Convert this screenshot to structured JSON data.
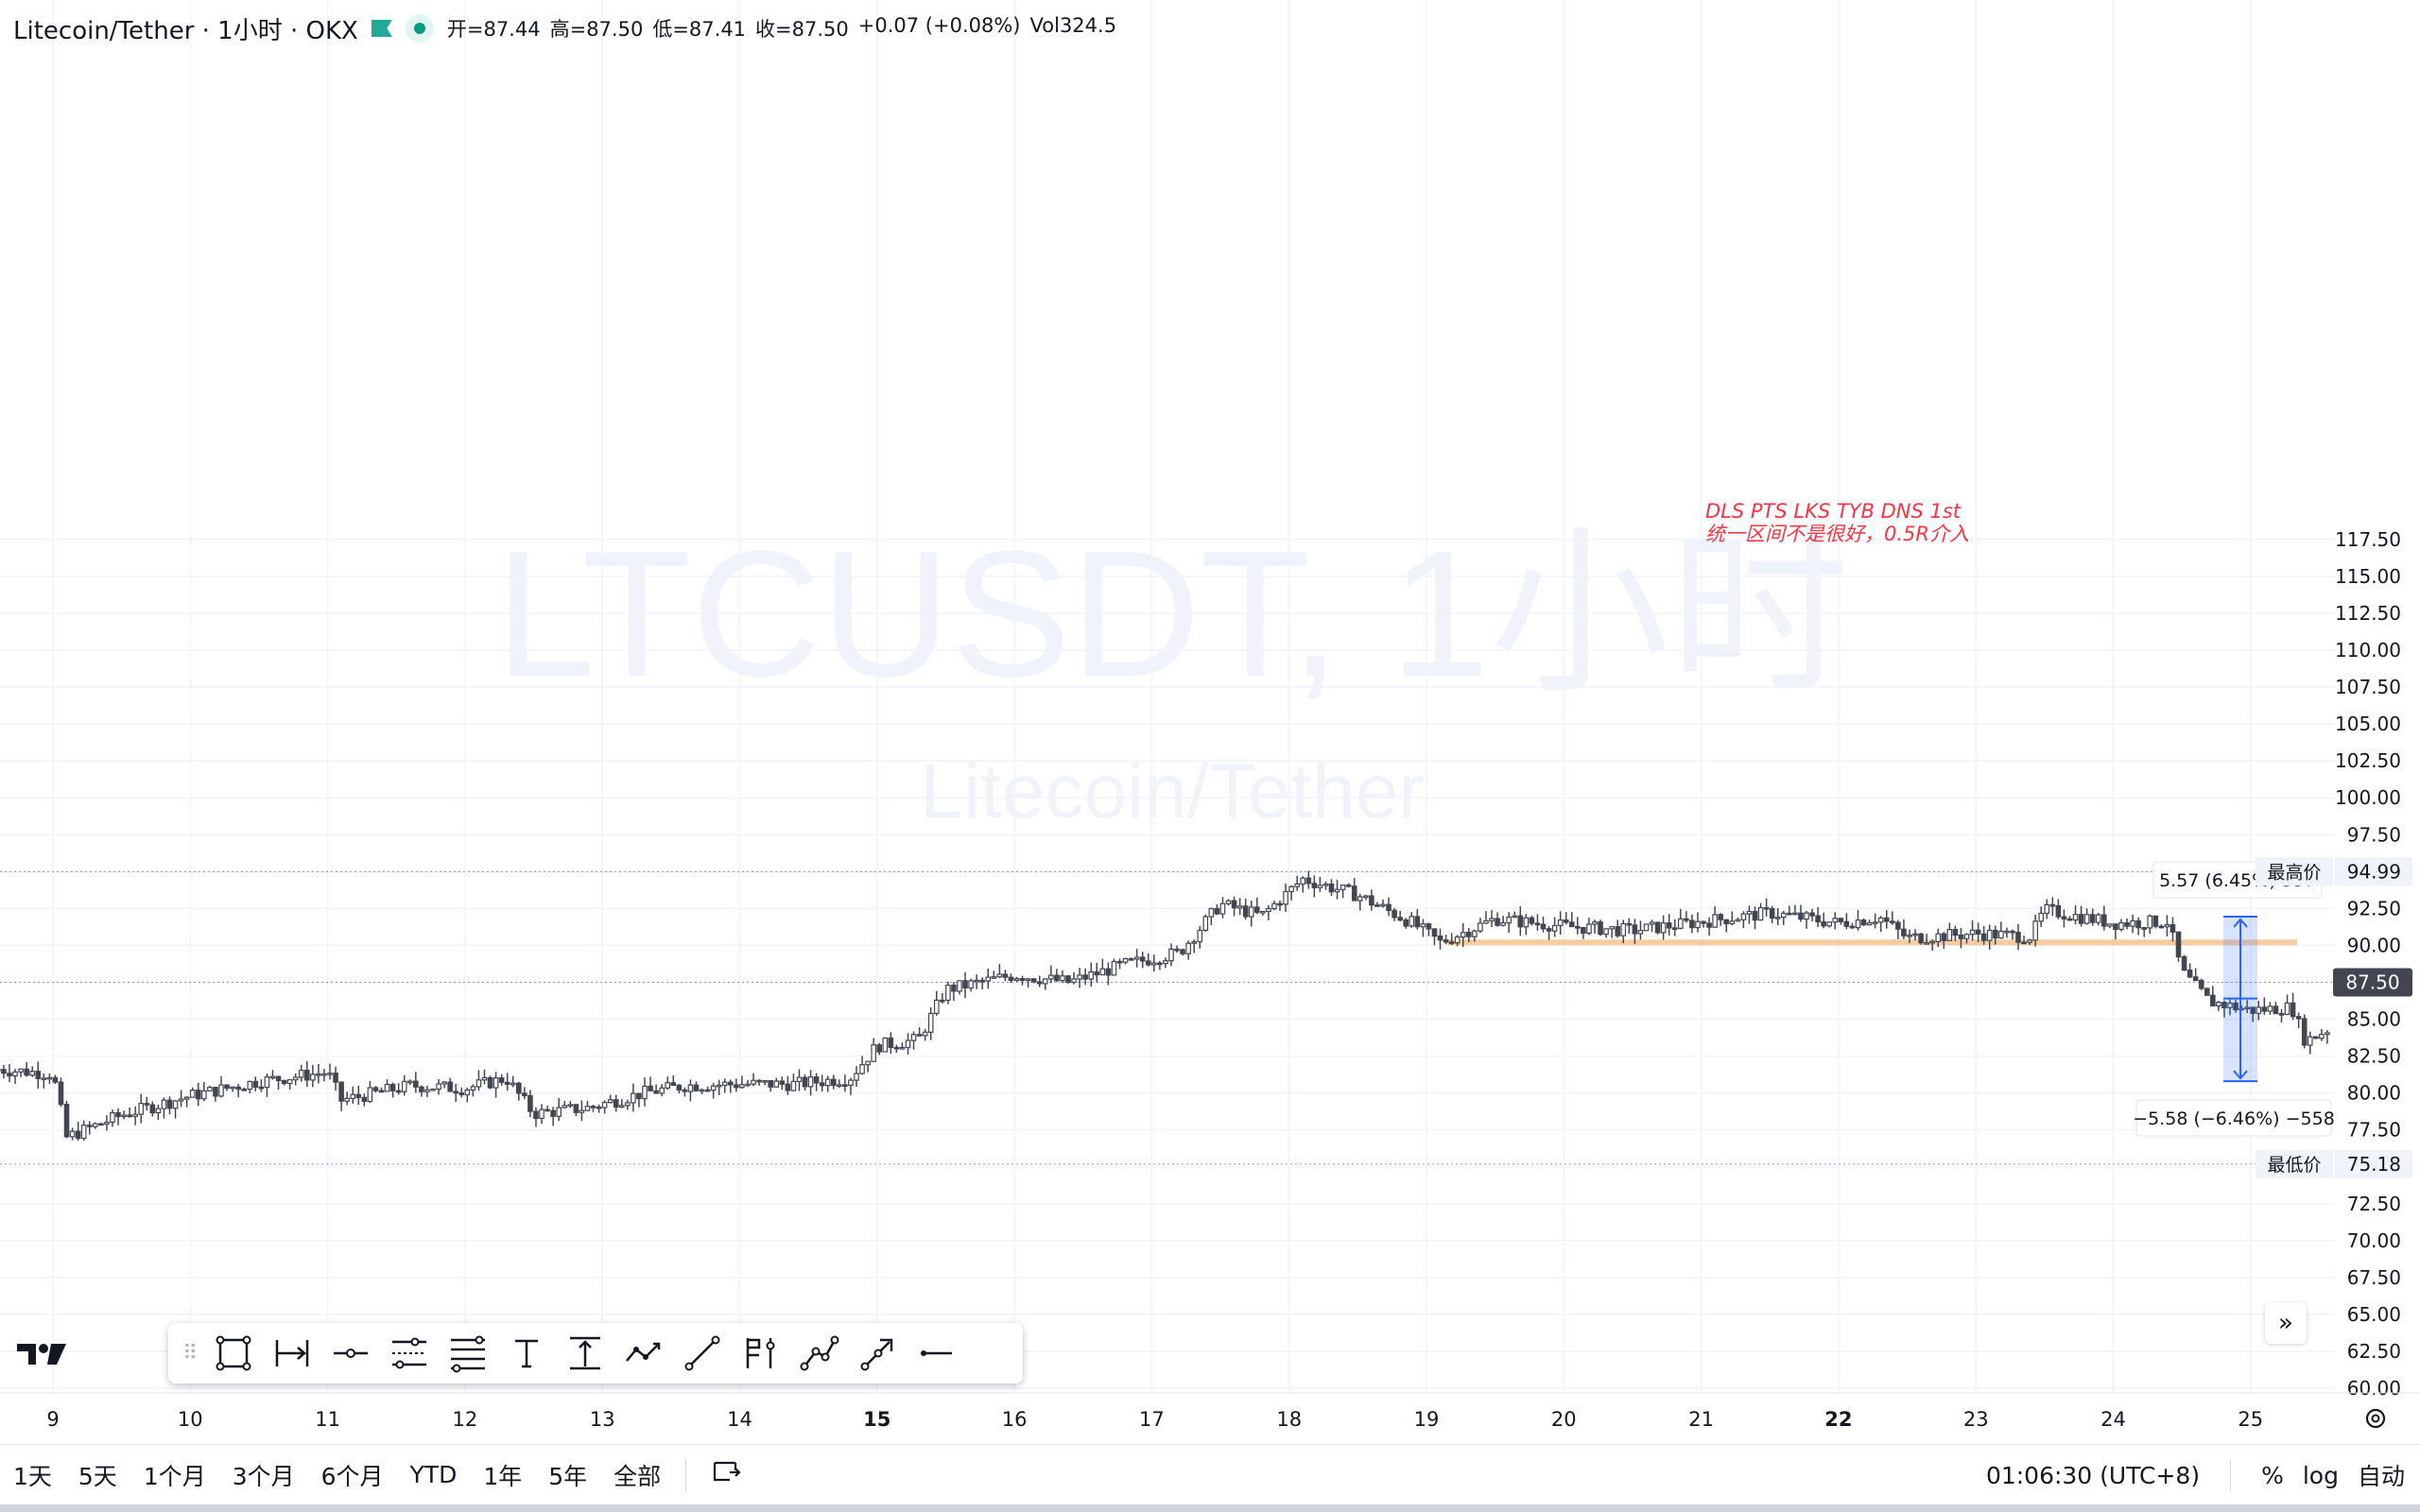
{
  "header": {
    "symbol": "Litecoin/Tether · 1小时 · OKX",
    "open_label": "开=",
    "open": "87.44",
    "high_label": "高=",
    "high": "87.50",
    "low_label": "低=",
    "low": "87.41",
    "close_label": "收=",
    "close": "87.50",
    "change": "+0.07 (+0.08%)",
    "vol_label": "Vol",
    "vol": "324.5"
  },
  "watermark": {
    "line1": "LTCUSDT, 1小时",
    "line2": "Litecoin/Tether"
  },
  "annotation": {
    "line1": "DLS PTS LKS TYB DNS 1st",
    "line2": "统一区间不是很好，0.5R介入"
  },
  "measure": {
    "top_label": "5.57 (6.45%) 557",
    "bottom_label": "−5.58 (−6.46%) −558"
  },
  "price_axis": {
    "ticks": [
      "117.50",
      "115.00",
      "112.50",
      "110.00",
      "107.50",
      "105.00",
      "102.50",
      "100.00",
      "97.50",
      "92.50",
      "90.00",
      "85.00",
      "82.50",
      "80.00",
      "77.50",
      "72.50",
      "70.00",
      "67.50",
      "65.00",
      "62.50",
      "60.00"
    ],
    "current_price": "87.50",
    "high_label": "最高价",
    "high_value": "94.99",
    "low_label": "最低价",
    "low_value": "75.18"
  },
  "time_axis": {
    "ticks": [
      "9",
      "10",
      "11",
      "12",
      "13",
      "14",
      "15",
      "16",
      "17",
      "18",
      "19",
      "20",
      "21",
      "22",
      "23",
      "24",
      "25"
    ],
    "bold": [
      "15",
      "22"
    ]
  },
  "toolbar": {
    "tools": [
      "rectangle-icon",
      "date-range-icon",
      "horizontal-ray-icon",
      "parallel-channel-icon",
      "fib-retracement-icon",
      "text-icon",
      "price-range-icon",
      "path-icon",
      "trend-line-icon",
      "long-position-icon",
      "xabcd-icon",
      "arrow-icon",
      "horizontal-line-icon"
    ]
  },
  "bottom": {
    "ranges": [
      "1天",
      "5天",
      "1个月",
      "3个月",
      "6个月",
      "YTD",
      "1年",
      "5年",
      "全部"
    ],
    "goto_icon": "goto-date-icon",
    "time": "01:06:30 (UTC+8)",
    "percent": "%",
    "log": "log",
    "auto": "自动"
  },
  "colors": {
    "candle": "#434651",
    "annotation": "#f23645",
    "level_line": "#f7c58d",
    "measure": "#2962ff",
    "current_price_bg": "#434651"
  },
  "chart_data": {
    "type": "candlestick",
    "interval": "1h",
    "ylim": [
      60,
      117.5
    ],
    "x_day_ticks": [
      9,
      10,
      11,
      12,
      13,
      14,
      15,
      16,
      17,
      18,
      19,
      20,
      21,
      22,
      23,
      24,
      25
    ],
    "approx_close_path": [
      {
        "x": 8.6,
        "y": 81.6
      },
      {
        "x": 9.0,
        "y": 81.3
      },
      {
        "x": 9.1,
        "y": 77.0
      },
      {
        "x": 9.5,
        "y": 78.5
      },
      {
        "x": 10.0,
        "y": 79.8
      },
      {
        "x": 10.5,
        "y": 80.8
      },
      {
        "x": 11.0,
        "y": 81.4
      },
      {
        "x": 11.1,
        "y": 79.5
      },
      {
        "x": 11.6,
        "y": 80.5
      },
      {
        "x": 12.0,
        "y": 80.3
      },
      {
        "x": 12.3,
        "y": 81.0
      },
      {
        "x": 12.5,
        "y": 78.6
      },
      {
        "x": 12.9,
        "y": 79.0
      },
      {
        "x": 13.3,
        "y": 80.0
      },
      {
        "x": 13.6,
        "y": 80.5
      },
      {
        "x": 14.0,
        "y": 80.6
      },
      {
        "x": 14.4,
        "y": 80.6
      },
      {
        "x": 14.8,
        "y": 81.0
      },
      {
        "x": 15.0,
        "y": 83.2
      },
      {
        "x": 15.3,
        "y": 83.6
      },
      {
        "x": 15.5,
        "y": 87.0
      },
      {
        "x": 16.0,
        "y": 88.0
      },
      {
        "x": 16.4,
        "y": 87.5
      },
      {
        "x": 16.8,
        "y": 88.7
      },
      {
        "x": 17.2,
        "y": 89.5
      },
      {
        "x": 17.5,
        "y": 92.8
      },
      {
        "x": 17.8,
        "y": 92.0
      },
      {
        "x": 18.1,
        "y": 94.5
      },
      {
        "x": 18.5,
        "y": 93.4
      },
      {
        "x": 18.9,
        "y": 91.5
      },
      {
        "x": 19.1,
        "y": 90.2
      },
      {
        "x": 19.5,
        "y": 91.8
      },
      {
        "x": 20.0,
        "y": 91.3
      },
      {
        "x": 20.5,
        "y": 91.0
      },
      {
        "x": 21.0,
        "y": 91.6
      },
      {
        "x": 21.5,
        "y": 92.2
      },
      {
        "x": 22.0,
        "y": 91.5
      },
      {
        "x": 22.3,
        "y": 91.9
      },
      {
        "x": 22.5,
        "y": 90.5
      },
      {
        "x": 23.0,
        "y": 90.8
      },
      {
        "x": 23.4,
        "y": 90.6
      },
      {
        "x": 23.5,
        "y": 92.4
      },
      {
        "x": 24.0,
        "y": 91.5
      },
      {
        "x": 24.4,
        "y": 91.6
      },
      {
        "x": 24.5,
        "y": 88.2
      },
      {
        "x": 24.7,
        "y": 86.2
      },
      {
        "x": 25.0,
        "y": 85.6
      },
      {
        "x": 25.3,
        "y": 85.8
      },
      {
        "x": 25.4,
        "y": 83.5
      },
      {
        "x": 25.6,
        "y": 84.5
      }
    ],
    "horizontal_level": 90.2,
    "measure_range": {
      "from": 80.8,
      "mid": 86.4,
      "to": 91.95
    }
  }
}
